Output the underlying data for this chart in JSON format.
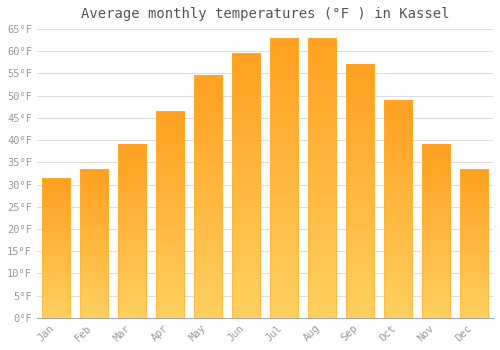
{
  "title": "Average monthly temperatures (°F ) in Kassel",
  "months": [
    "Jan",
    "Feb",
    "Mar",
    "Apr",
    "May",
    "Jun",
    "Jul",
    "Aug",
    "Sep",
    "Oct",
    "Nov",
    "Dec"
  ],
  "values": [
    31.5,
    33.5,
    39.0,
    46.5,
    54.5,
    59.5,
    63.0,
    63.0,
    57.0,
    49.0,
    39.0,
    33.5
  ],
  "bar_color_top": "#FFA020",
  "bar_color_bottom": "#FFD060",
  "ylim": [
    0,
    65
  ],
  "yticks": [
    0,
    5,
    10,
    15,
    20,
    25,
    30,
    35,
    40,
    45,
    50,
    55,
    60,
    65
  ],
  "ytick_labels": [
    "0°F",
    "5°F",
    "10°F",
    "15°F",
    "20°F",
    "25°F",
    "30°F",
    "35°F",
    "40°F",
    "45°F",
    "50°F",
    "55°F",
    "60°F",
    "65°F"
  ],
  "grid_color": "#dddddd",
  "bg_color": "#ffffff",
  "title_fontsize": 10,
  "tick_fontsize": 7.5,
  "tick_color": "#999999",
  "font_family": "monospace",
  "bar_width": 0.75
}
